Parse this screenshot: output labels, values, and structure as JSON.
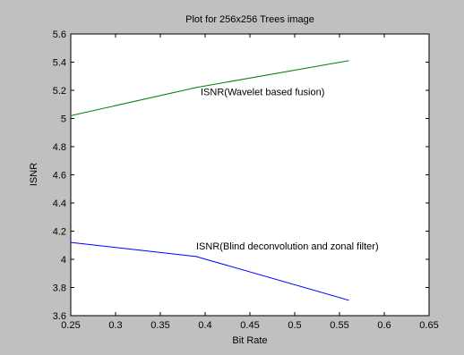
{
  "chart_data": {
    "type": "line",
    "title": "Plot for 256x256 Trees image",
    "xlabel": "Bit Rate",
    "ylabel": "ISNR",
    "xlim": [
      0.25,
      0.65
    ],
    "ylim": [
      3.6,
      5.6
    ],
    "xticks": [
      "0.25",
      "0.3",
      "0.35",
      "0.4",
      "0.45",
      "0.5",
      "0.55",
      "0.6",
      "0.65"
    ],
    "yticks": [
      "3.6",
      "3.8",
      "4",
      "4.2",
      "4.4",
      "4.6",
      "4.8",
      "5",
      "5.2",
      "5.4",
      "5.6"
    ],
    "grid": false,
    "series": [
      {
        "name": "ISNR(Wavelet based fusion)",
        "color": "#007f00",
        "x": [
          0.25,
          0.39,
          0.56
        ],
        "y": [
          5.02,
          5.22,
          5.41
        ],
        "label_at": [
          0.395,
          5.165
        ]
      },
      {
        "name": "ISNR(Blind deconvolution and zonal filter)",
        "color": "#0000ff",
        "x": [
          0.25,
          0.39,
          0.56
        ],
        "y": [
          4.12,
          4.02,
          3.71
        ],
        "label_at": [
          0.39,
          4.07
        ]
      }
    ]
  }
}
